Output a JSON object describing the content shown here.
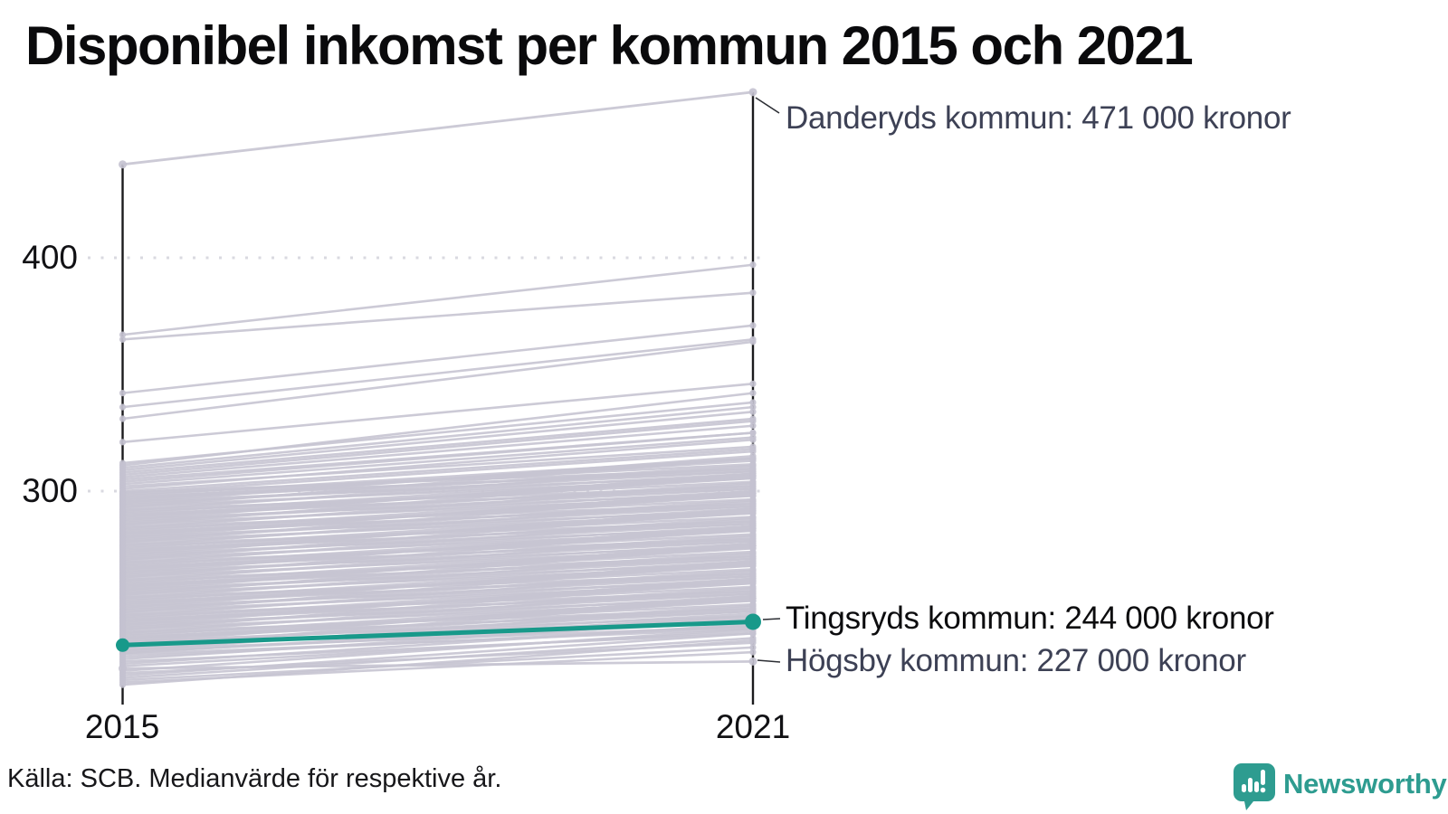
{
  "title": "Disponibel inkomst per kommun 2015 och 2021",
  "source": "Källa: SCB. Medianvärde för respektive år.",
  "logo": {
    "text": "Newsworthy",
    "icon": "speech-bubble-bar-chart-exclamation"
  },
  "colors": {
    "background": "#ffffff",
    "title_text": "#0a0a0c",
    "axis": "#1b1b1d",
    "gridline": "#d9d9e0",
    "line_gray": "#c7c5d2",
    "dot_gray": "#c4c2d0",
    "highlight_teal": "#18998a",
    "annotation_slate": "#3d4155",
    "annotation_black": "#0c0c0e",
    "logo_teal": "#2e9c90"
  },
  "chart_data": {
    "type": "line",
    "subtype": "slope-chart",
    "x_categories": [
      "2015",
      "2021"
    ],
    "y_ticks": [
      {
        "value": 400,
        "label": "400"
      },
      {
        "value": 300,
        "label": "300"
      }
    ],
    "y_axis_unit": "tusen kronor",
    "grid": "dotted-horizontal",
    "annotations": [
      {
        "id": "danderyd",
        "label": "Danderyds kommun: 471 000 kronor",
        "v2015": 440,
        "v2021": 471,
        "highlighted": false
      },
      {
        "id": "tingsryd",
        "label": "Tingsryds kommun: 244 000 kronor",
        "v2015": 234,
        "v2021": 244,
        "highlighted": true
      },
      {
        "id": "hogsby",
        "label": "Högsby kommun: 227 000 kronor",
        "v2015": 224,
        "v2021": 227,
        "highlighted": false
      }
    ],
    "background_lines": [
      [
        230,
        241
      ],
      [
        230.5,
        246.5
      ],
      [
        231,
        244
      ],
      [
        231.5,
        250.5
      ],
      [
        232,
        242
      ],
      [
        232.5,
        247.5
      ],
      [
        233,
        254
      ],
      [
        233.5,
        245.5
      ],
      [
        234,
        251
      ],
      [
        234.5,
        248.5
      ],
      [
        235,
        255
      ],
      [
        235.5,
        246.5
      ],
      [
        236,
        254
      ],
      [
        236.5,
        249.5
      ],
      [
        237,
        253
      ],
      [
        237.5,
        248.5
      ],
      [
        238,
        254
      ],
      [
        238.5,
        251.5
      ],
      [
        239,
        258
      ],
      [
        239.5,
        249.5
      ],
      [
        240,
        255
      ],
      [
        240.5,
        261.5
      ],
      [
        241,
        253
      ],
      [
        241.5,
        258.5
      ],
      [
        242,
        256
      ],
      [
        242.5,
        262.5
      ],
      [
        243,
        254
      ],
      [
        243.5,
        261.5
      ],
      [
        244,
        257
      ],
      [
        244.5,
        260.5
      ],
      [
        245,
        256
      ],
      [
        245.5,
        261.5
      ],
      [
        246,
        259
      ],
      [
        246.5,
        265.5
      ],
      [
        247,
        257
      ],
      [
        247.5,
        262.5
      ],
      [
        248,
        269
      ],
      [
        248.5,
        260.5
      ],
      [
        249,
        266
      ],
      [
        249.5,
        263.5
      ],
      [
        250,
        270
      ],
      [
        250.5,
        261.5
      ],
      [
        251,
        269
      ],
      [
        251.5,
        264.5
      ],
      [
        252,
        268
      ],
      [
        252.5,
        263.5
      ],
      [
        253,
        269
      ],
      [
        253.5,
        266.5
      ],
      [
        254,
        273
      ],
      [
        254.5,
        264.5
      ],
      [
        255,
        270
      ],
      [
        255.5,
        276.5
      ],
      [
        256,
        268
      ],
      [
        256.5,
        273.5
      ],
      [
        257,
        271
      ],
      [
        257.5,
        277.5
      ],
      [
        258,
        269
      ],
      [
        258.5,
        276.5
      ],
      [
        259,
        272
      ],
      [
        259.5,
        275.5
      ],
      [
        260,
        271
      ],
      [
        260.5,
        276.5
      ],
      [
        261,
        274
      ],
      [
        261.5,
        280.5
      ],
      [
        262,
        272
      ],
      [
        262.5,
        277.5
      ],
      [
        263,
        284
      ],
      [
        263.5,
        275.5
      ],
      [
        264,
        281
      ],
      [
        264.5,
        278.5
      ],
      [
        265,
        285
      ],
      [
        265.5,
        276.5
      ],
      [
        266,
        284
      ],
      [
        266.5,
        279.5
      ],
      [
        267,
        283
      ],
      [
        267.5,
        278.5
      ],
      [
        268,
        284
      ],
      [
        268.5,
        281.5
      ],
      [
        269,
        288
      ],
      [
        269.5,
        279.5
      ],
      [
        270,
        285
      ],
      [
        270.5,
        291.5
      ],
      [
        271,
        283
      ],
      [
        271.5,
        288.5
      ],
      [
        272,
        286
      ],
      [
        272.5,
        292.5
      ],
      [
        273,
        284
      ],
      [
        273.5,
        291.5
      ],
      [
        274,
        287
      ],
      [
        274.5,
        290.5
      ],
      [
        275,
        286
      ],
      [
        275.5,
        291.5
      ],
      [
        276,
        289
      ],
      [
        276.5,
        295.5
      ],
      [
        277,
        287
      ],
      [
        277.5,
        292.5
      ],
      [
        278,
        299
      ],
      [
        278.5,
        290.5
      ],
      [
        279,
        296
      ],
      [
        279.5,
        293.5
      ],
      [
        280,
        300
      ],
      [
        280.5,
        291.5
      ],
      [
        281,
        299
      ],
      [
        281.5,
        294.5
      ],
      [
        282,
        298
      ],
      [
        282.5,
        293.5
      ],
      [
        283,
        299
      ],
      [
        283.5,
        296.5
      ],
      [
        284,
        303
      ],
      [
        284.5,
        294.5
      ],
      [
        285,
        300
      ],
      [
        285.5,
        306.5
      ],
      [
        286,
        298
      ],
      [
        286.5,
        303.5
      ],
      [
        287,
        301
      ],
      [
        287.5,
        307.5
      ],
      [
        288,
        299
      ],
      [
        288.5,
        306.5
      ],
      [
        289,
        302
      ],
      [
        289.5,
        305.5
      ],
      [
        290,
        301
      ],
      [
        290.5,
        306.5
      ],
      [
        291,
        304
      ],
      [
        291.5,
        310.5
      ],
      [
        292,
        302
      ],
      [
        292.5,
        307.5
      ],
      [
        293,
        314
      ],
      [
        293.5,
        305.5
      ],
      [
        294,
        311
      ],
      [
        294.5,
        308.5
      ],
      [
        295,
        315
      ],
      [
        295.5,
        306.5
      ],
      [
        296,
        314
      ],
      [
        296.5,
        309.5
      ],
      [
        297,
        313
      ],
      [
        297.5,
        308.5
      ],
      [
        298,
        314
      ],
      [
        298.5,
        311.5
      ],
      [
        299,
        317
      ],
      [
        299.5,
        309.5
      ],
      [
        300,
        318
      ],
      [
        301,
        322
      ],
      [
        302,
        319
      ],
      [
        303,
        323
      ],
      [
        304,
        325
      ],
      [
        305,
        325
      ],
      [
        306,
        328
      ],
      [
        307,
        330
      ],
      [
        308,
        331
      ],
      [
        309,
        334
      ],
      [
        310,
        336
      ],
      [
        311,
        342
      ],
      [
        312,
        338
      ],
      [
        321,
        346
      ],
      [
        331,
        364
      ],
      [
        336,
        365
      ],
      [
        342,
        371
      ],
      [
        365,
        385
      ],
      [
        367,
        397
      ],
      [
        217,
        236
      ],
      [
        218,
        231
      ],
      [
        219,
        233
      ],
      [
        220,
        237
      ],
      [
        221,
        239
      ],
      [
        222,
        235
      ],
      [
        223,
        241
      ],
      [
        225,
        240
      ],
      [
        226,
        243
      ],
      [
        227,
        239
      ],
      [
        228,
        245
      ],
      [
        229,
        242
      ]
    ]
  }
}
